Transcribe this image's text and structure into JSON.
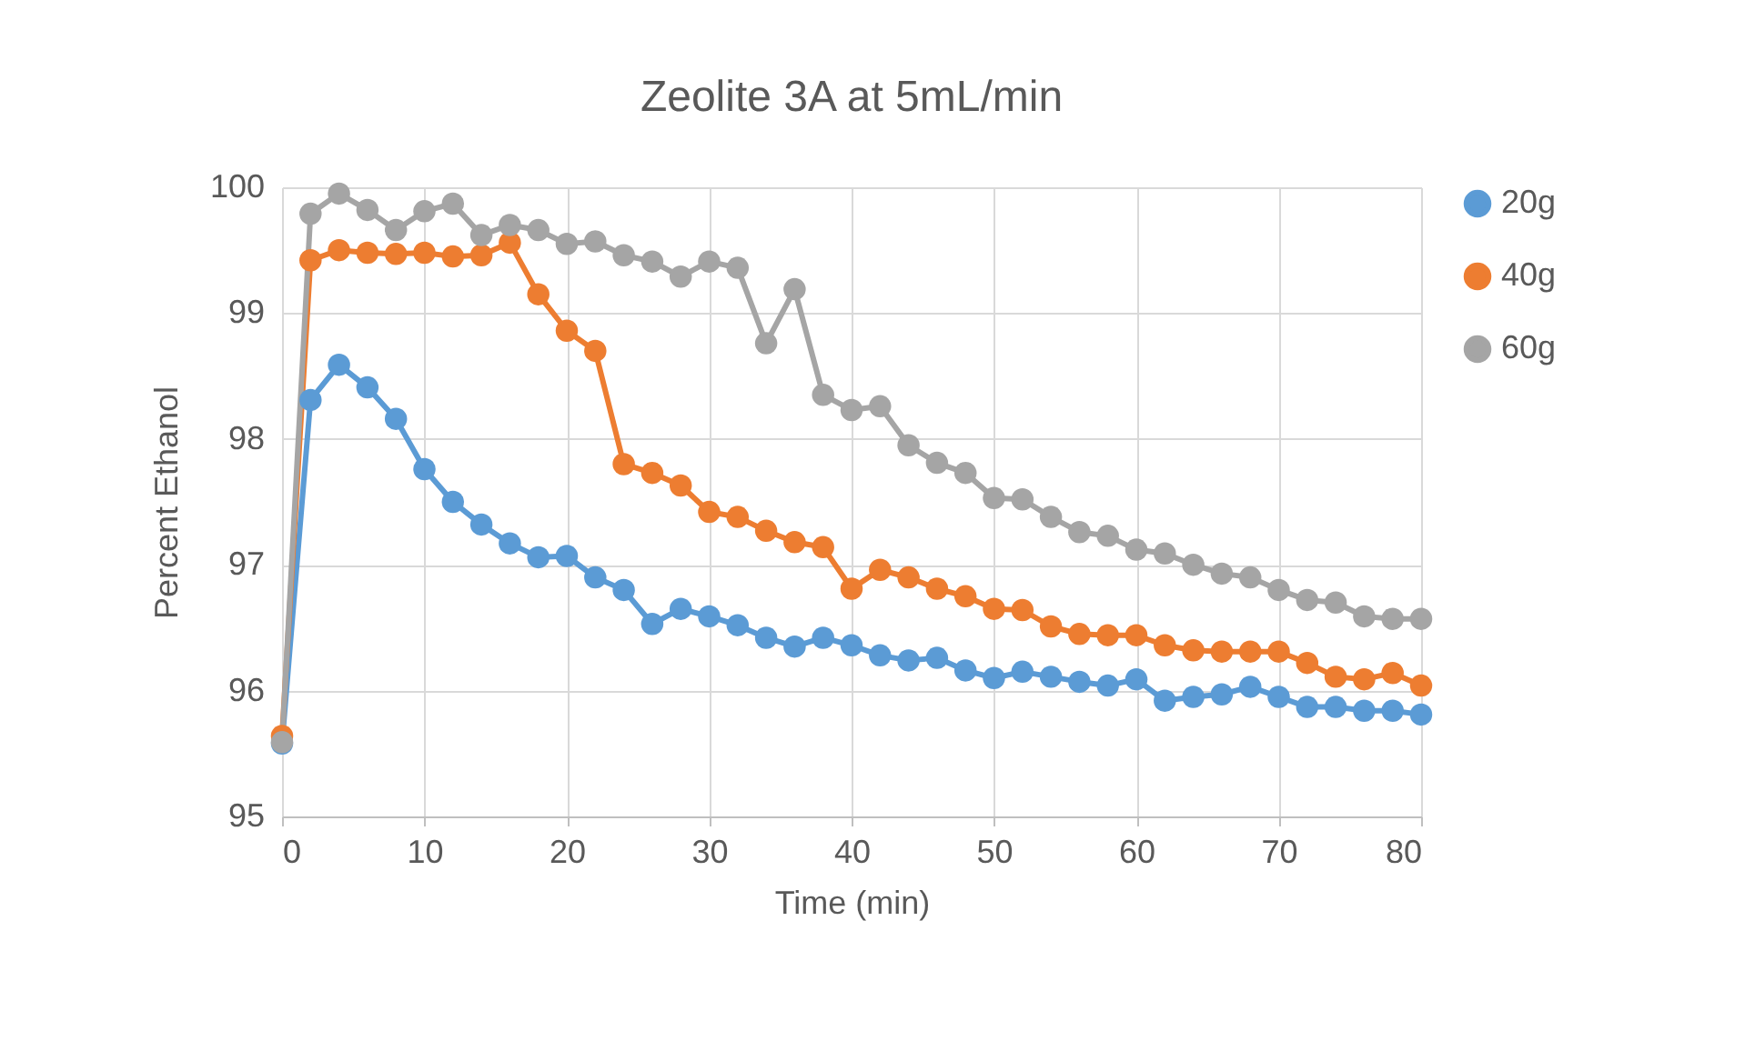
{
  "chart_data": {
    "type": "line",
    "title": "Zeolite 3A at 5mL/min",
    "xlabel": "Time (min)",
    "ylabel": "Percent Ethanol",
    "x": [
      0,
      2,
      4,
      6,
      8,
      10,
      12,
      14,
      16,
      18,
      20,
      22,
      24,
      26,
      28,
      30,
      32,
      34,
      36,
      38,
      40,
      42,
      44,
      46,
      48,
      50,
      52,
      54,
      56,
      58,
      60,
      62,
      64,
      66,
      68,
      70,
      72,
      74,
      76,
      78,
      80
    ],
    "series": [
      {
        "name": "20g",
        "color": "#5b9bd5",
        "values": [
          95.58,
          98.31,
          98.59,
          98.41,
          98.16,
          97.76,
          97.5,
          97.32,
          97.17,
          97.06,
          97.07,
          96.9,
          96.8,
          96.53,
          96.65,
          96.59,
          96.52,
          96.42,
          96.35,
          96.42,
          96.36,
          96.28,
          96.24,
          96.26,
          96.16,
          96.1,
          96.15,
          96.11,
          96.07,
          96.04,
          96.09,
          95.92,
          95.95,
          95.97,
          96.03,
          95.95,
          95.87,
          95.87,
          95.84,
          95.84,
          95.81
        ]
      },
      {
        "name": "40g",
        "color": "#ed7d31",
        "values": [
          95.64,
          99.42,
          99.5,
          99.48,
          99.47,
          99.48,
          99.45,
          99.46,
          99.56,
          99.15,
          98.86,
          98.7,
          97.8,
          97.73,
          97.63,
          97.42,
          97.38,
          97.27,
          97.18,
          97.14,
          96.81,
          96.96,
          96.9,
          96.81,
          96.75,
          96.65,
          96.64,
          96.51,
          96.45,
          96.44,
          96.44,
          96.36,
          96.32,
          96.31,
          96.31,
          96.31,
          96.22,
          96.11,
          96.09,
          96.14,
          96.04
        ]
      },
      {
        "name": "60g",
        "color": "#a5a5a5",
        "values": [
          95.59,
          99.79,
          99.95,
          99.82,
          99.66,
          99.81,
          99.87,
          99.62,
          99.7,
          99.66,
          99.55,
          99.57,
          99.46,
          99.41,
          99.29,
          99.41,
          99.36,
          98.76,
          99.19,
          98.35,
          98.23,
          98.26,
          97.95,
          97.81,
          97.73,
          97.53,
          97.52,
          97.38,
          97.26,
          97.23,
          97.12,
          97.09,
          97.0,
          96.93,
          96.9,
          96.8,
          96.72,
          96.7,
          96.59,
          96.57,
          96.57
        ]
      }
    ],
    "xlim": [
      0,
      80
    ],
    "xticks": [
      0,
      10,
      20,
      30,
      40,
      50,
      60,
      70,
      80
    ],
    "ylim": [
      95,
      100
    ],
    "yticks": [
      95,
      96,
      97,
      98,
      99,
      100
    ],
    "grid": true,
    "legend": "right",
    "marker": "circle",
    "line_style": "solid"
  }
}
